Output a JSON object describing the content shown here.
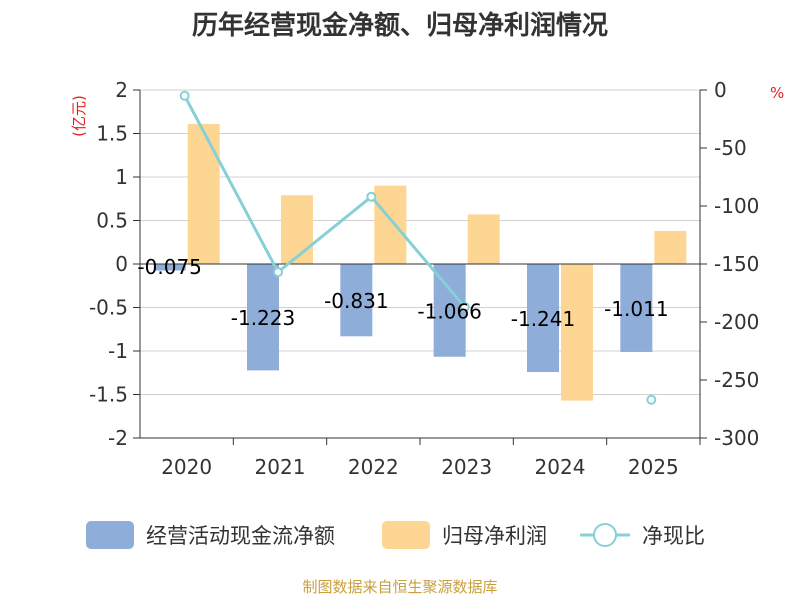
{
  "chart_data": {
    "type": "bar",
    "title": "历年经营现金净额、归母净利润情况",
    "categories": [
      "2020",
      "2021",
      "2022",
      "2023",
      "2024",
      "2025"
    ],
    "series": [
      {
        "name": "经营活动现金流净额",
        "axis": "left",
        "kind": "bar",
        "color": "#8eadd9",
        "values": [
          -0.075,
          -1.223,
          -0.831,
          -1.066,
          -1.241,
          -1.011
        ],
        "labels": [
          "-0.075",
          "-1.223",
          "-0.831",
          "-1.066",
          "-1.241",
          "-1.011"
        ]
      },
      {
        "name": "归母净利润",
        "axis": "left",
        "kind": "bar",
        "color": "#fdd693",
        "values": [
          1.61,
          0.79,
          0.9,
          0.57,
          -1.57,
          0.38
        ]
      },
      {
        "name": "净现比",
        "axis": "right",
        "kind": "line",
        "color": "#86d0d6",
        "values": [
          -5,
          -157,
          -92,
          -187,
          null,
          -267
        ]
      }
    ],
    "left_axis": {
      "unit": "(亿元)",
      "min": -2,
      "max": 2,
      "ticks": [
        2,
        1.5,
        1,
        0.5,
        0,
        -0.5,
        -1,
        -1.5,
        -2
      ],
      "tick_labels": [
        "2",
        "1.5",
        "1",
        "0.5",
        "0",
        "-0.5",
        "-1",
        "-1.5",
        "-2"
      ]
    },
    "right_axis": {
      "unit": "%",
      "min": -300,
      "max": 0,
      "ticks": [
        0,
        -50,
        -100,
        -150,
        -200,
        -250,
        -300
      ],
      "tick_labels": [
        "0",
        "-50",
        "-100",
        "-150",
        "-200",
        "-250",
        "-300"
      ]
    },
    "source": "制图数据来自恒生聚源数据库"
  }
}
